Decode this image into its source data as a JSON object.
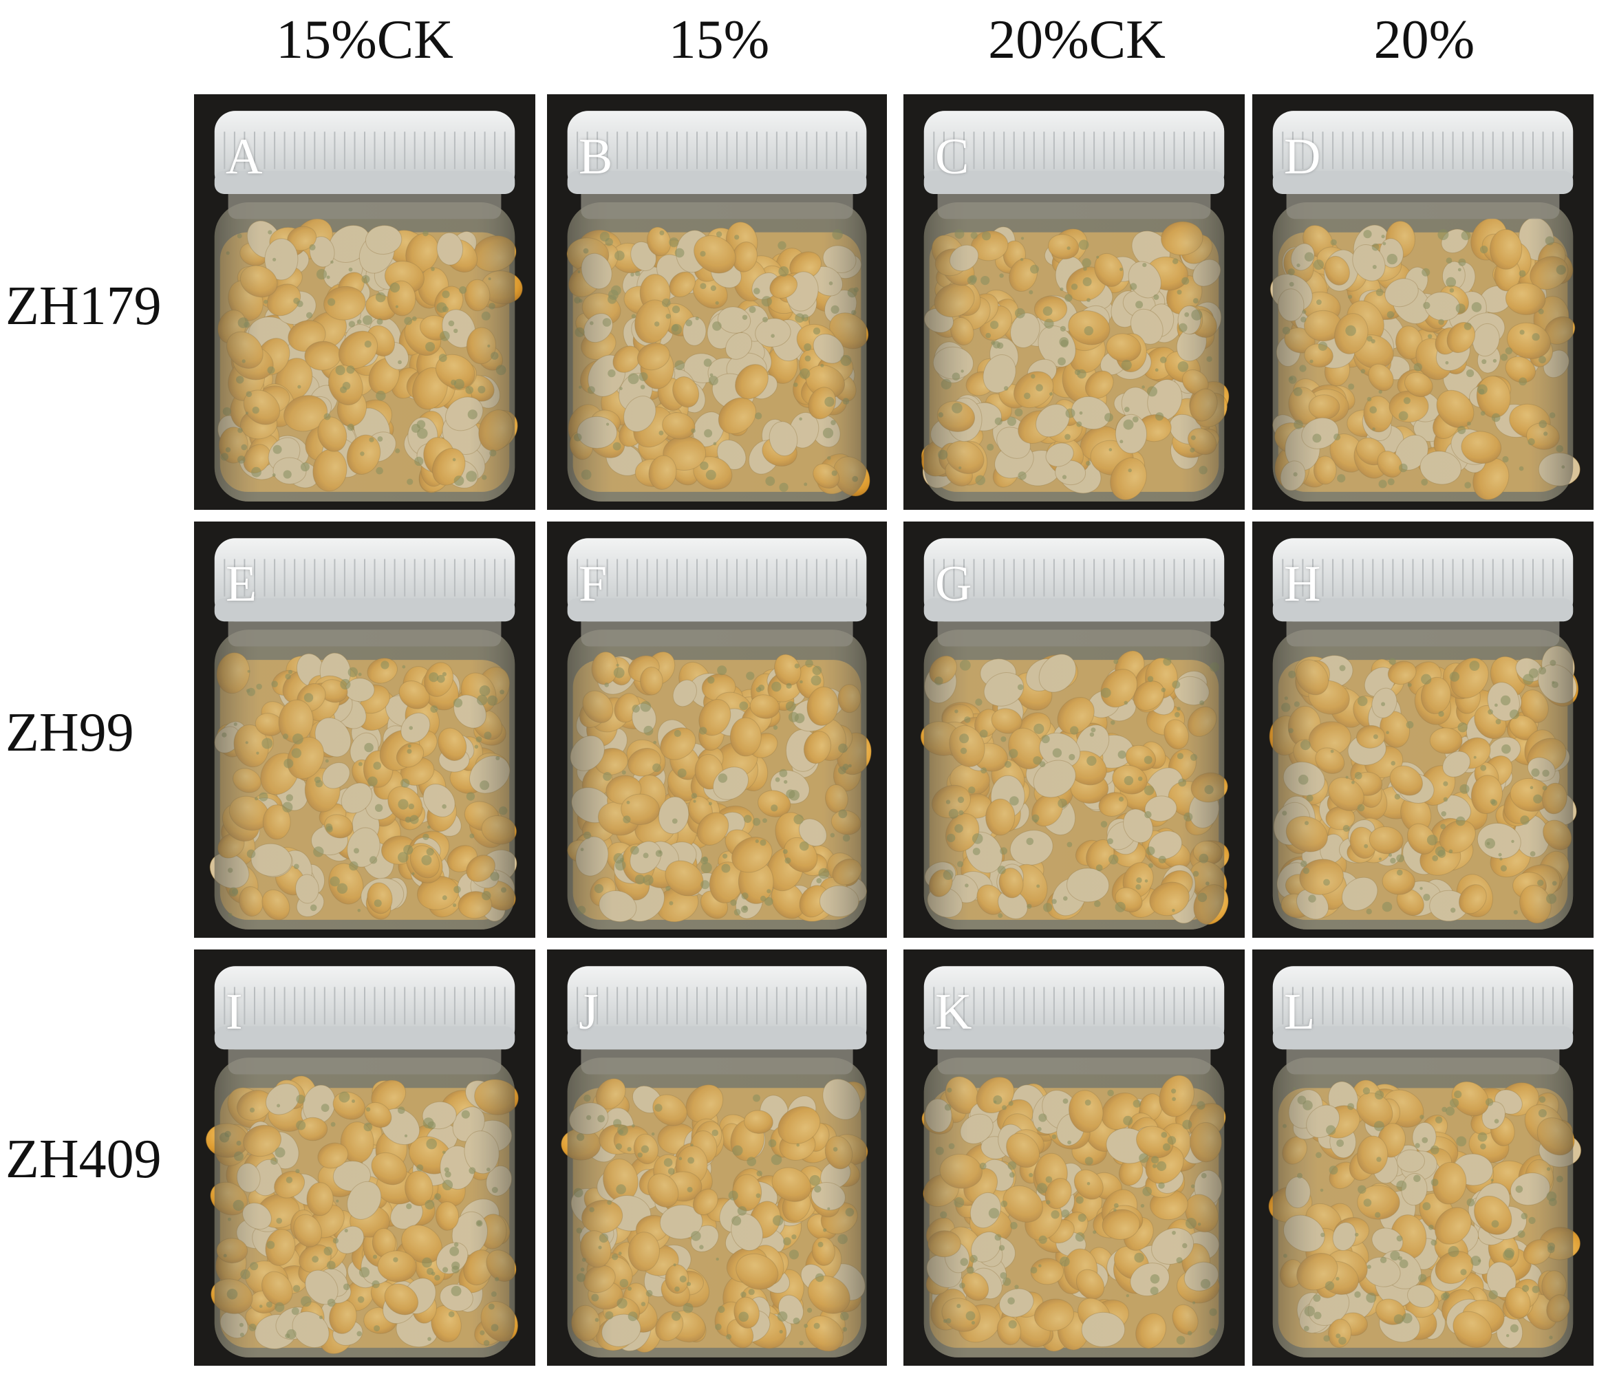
{
  "columns": [
    "15%CK",
    "15%",
    "20%CK",
    "20%"
  ],
  "rows": [
    "ZH179",
    "ZH99",
    "ZH409"
  ],
  "panels": [
    [
      "A",
      "B",
      "C",
      "D"
    ],
    [
      "E",
      "F",
      "G",
      "H"
    ],
    [
      "I",
      "J",
      "K",
      "L"
    ]
  ]
}
